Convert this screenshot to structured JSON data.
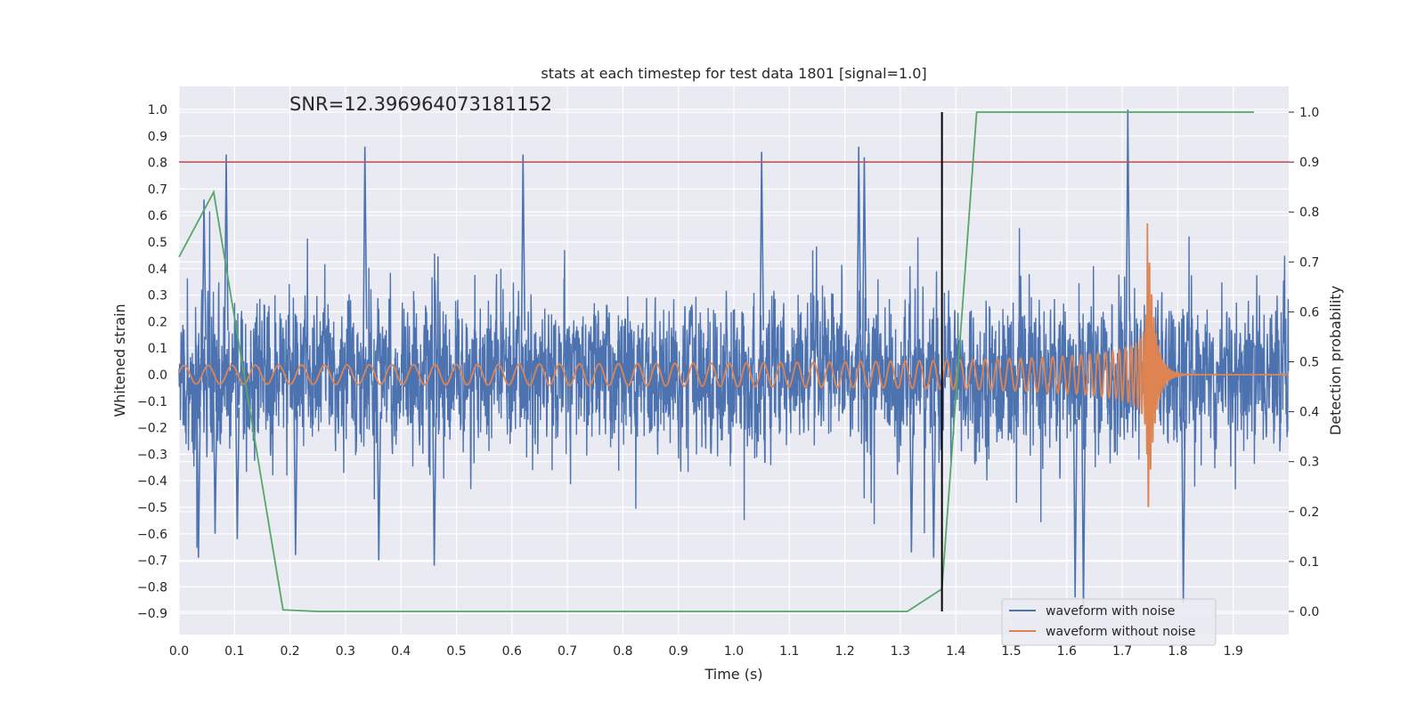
{
  "chart_data": {
    "type": "line",
    "title": "stats at each timestep for test data 1801 [signal=1.0]",
    "xlabel": "Time (s)",
    "ylabel": "Whitened strain",
    "y2label": "Detection probability",
    "annotation": "SNR=12.396964073181152",
    "xlim": [
      0.0,
      2.0
    ],
    "ylim": [
      -1.0,
      1.09
    ],
    "y2lim": [
      -0.05,
      1.05
    ],
    "xticks": [
      "0.0",
      "0.1",
      "0.2",
      "0.3",
      "0.4",
      "0.5",
      "0.6",
      "0.7",
      "0.8",
      "0.9",
      "1.0",
      "1.1",
      "1.2",
      "1.3",
      "1.4",
      "1.5",
      "1.6",
      "1.7",
      "1.8",
      "1.9"
    ],
    "yticks": [
      "1.0",
      "0.9",
      "0.8",
      "0.7",
      "0.6",
      "0.5",
      "0.4",
      "0.3",
      "0.2",
      "0.1",
      "0.0",
      "−0.1",
      "−0.2",
      "−0.3",
      "−0.4",
      "−0.5",
      "−0.6",
      "−0.7",
      "−0.8",
      "−0.9"
    ],
    "y2ticks": [
      "1.0",
      "0.9",
      "0.8",
      "0.7",
      "0.6",
      "0.5",
      "0.4",
      "0.3",
      "0.2",
      "0.1",
      "0.0"
    ],
    "grid": true,
    "legend_position": "bottom-right",
    "legend": [
      {
        "label": "waveform with noise",
        "color": "#4c72b0"
      },
      {
        "label": "waveform without noise",
        "color": "#dd8452"
      }
    ],
    "threshold_line": {
      "y2": 0.9,
      "color": "#c44e52"
    },
    "marker_line": {
      "x": 1.375,
      "y2_from": 0.0,
      "y2_to": 1.0,
      "color": "#000000"
    },
    "noise_series": {
      "name": "waveform with noise",
      "color": "#4c72b0",
      "sample_rate": 2048,
      "duration": 2.0,
      "base_std": 0.13,
      "spikes": [
        {
          "t": 0.035,
          "v": -0.69
        },
        {
          "t": 0.045,
          "v": 0.66
        },
        {
          "t": 0.065,
          "v": -0.6
        },
        {
          "t": 0.085,
          "v": 0.83
        },
        {
          "t": 0.105,
          "v": -0.62
        },
        {
          "t": 0.21,
          "v": -0.68
        },
        {
          "t": 0.335,
          "v": 0.86
        },
        {
          "t": 0.36,
          "v": -0.7
        },
        {
          "t": 0.46,
          "v": -0.72
        },
        {
          "t": 0.62,
          "v": 0.83
        },
        {
          "t": 1.05,
          "v": 0.84
        },
        {
          "t": 1.225,
          "v": 0.86
        },
        {
          "t": 1.235,
          "v": 0.82
        },
        {
          "t": 1.32,
          "v": -0.67
        },
        {
          "t": 1.36,
          "v": -0.69
        },
        {
          "t": 1.615,
          "v": -0.84
        },
        {
          "t": 1.63,
          "v": -0.88
        },
        {
          "t": 1.71,
          "v": 1.0
        },
        {
          "t": 1.81,
          "v": -0.86
        }
      ]
    },
    "clean_series": {
      "name": "waveform without noise",
      "color": "#dd8452",
      "chirp": {
        "t_merge": 1.745,
        "f0": 23,
        "amp0": 0.035,
        "amp_peak": 0.61,
        "ringdown": 0.012
      }
    },
    "probability_series": {
      "name": "Detection probability",
      "color": "#55a868",
      "x": [
        0.0,
        0.0625,
        0.1875,
        0.25,
        1.3125,
        1.375,
        1.4375,
        1.9375
      ],
      "y": [
        0.71,
        0.84,
        0.003,
        0.0,
        0.0,
        0.045,
        1.0,
        1.0
      ]
    }
  }
}
